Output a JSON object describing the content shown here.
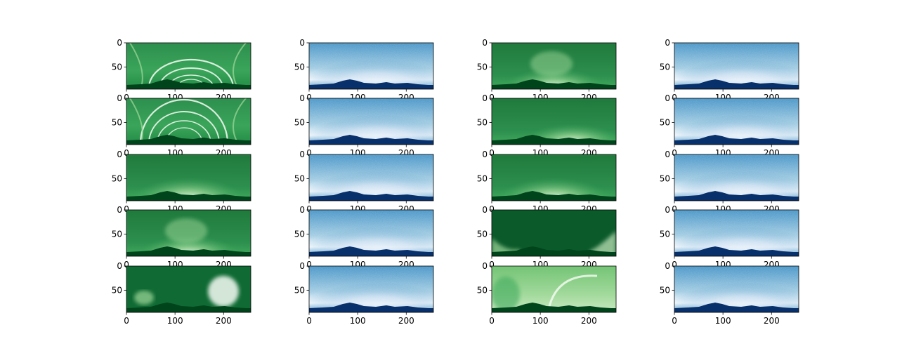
{
  "chart_data": {
    "type": "heatmap",
    "layout": {
      "rows": 5,
      "cols": 4
    },
    "image_shape": {
      "rows": 96,
      "cols": 256
    },
    "x_ticks": [
      0,
      100,
      200
    ],
    "y_ticks": [
      0,
      50
    ],
    "colormaps": {
      "green": {
        "low": "#00441b",
        "mid": "#41ab5d",
        "high": "#f7fcf5"
      },
      "blue": {
        "low": "#08306b",
        "mid": "#4292c6",
        "high": "#f7fbff"
      }
    },
    "panels": [
      {
        "row": 0,
        "col": 0,
        "colormap": "green",
        "pattern": "arcs"
      },
      {
        "row": 0,
        "col": 1,
        "colormap": "blue",
        "pattern": "noise"
      },
      {
        "row": 0,
        "col": 2,
        "colormap": "green",
        "pattern": "center-bright"
      },
      {
        "row": 0,
        "col": 3,
        "colormap": "blue",
        "pattern": "noise"
      },
      {
        "row": 1,
        "col": 0,
        "colormap": "green",
        "pattern": "big-arcs"
      },
      {
        "row": 1,
        "col": 1,
        "colormap": "blue",
        "pattern": "noise"
      },
      {
        "row": 1,
        "col": 2,
        "colormap": "green",
        "pattern": "right-bright"
      },
      {
        "row": 1,
        "col": 3,
        "colormap": "blue",
        "pattern": "noise"
      },
      {
        "row": 2,
        "col": 0,
        "colormap": "green",
        "pattern": "horizon-glow"
      },
      {
        "row": 2,
        "col": 1,
        "colormap": "blue",
        "pattern": "noise"
      },
      {
        "row": 2,
        "col": 2,
        "colormap": "green",
        "pattern": "horizon-glow"
      },
      {
        "row": 2,
        "col": 3,
        "colormap": "blue",
        "pattern": "noise"
      },
      {
        "row": 3,
        "col": 0,
        "colormap": "green",
        "pattern": "clouds"
      },
      {
        "row": 3,
        "col": 1,
        "colormap": "blue",
        "pattern": "noise"
      },
      {
        "row": 3,
        "col": 2,
        "colormap": "green",
        "pattern": "dark-edges"
      },
      {
        "row": 3,
        "col": 3,
        "colormap": "blue",
        "pattern": "noise"
      },
      {
        "row": 4,
        "col": 0,
        "colormap": "green",
        "pattern": "right-blob"
      },
      {
        "row": 4,
        "col": 1,
        "colormap": "blue",
        "pattern": "noise"
      },
      {
        "row": 4,
        "col": 2,
        "colormap": "green",
        "pattern": "bright-sky"
      },
      {
        "row": 4,
        "col": 3,
        "colormap": "blue",
        "pattern": "noise"
      }
    ]
  }
}
